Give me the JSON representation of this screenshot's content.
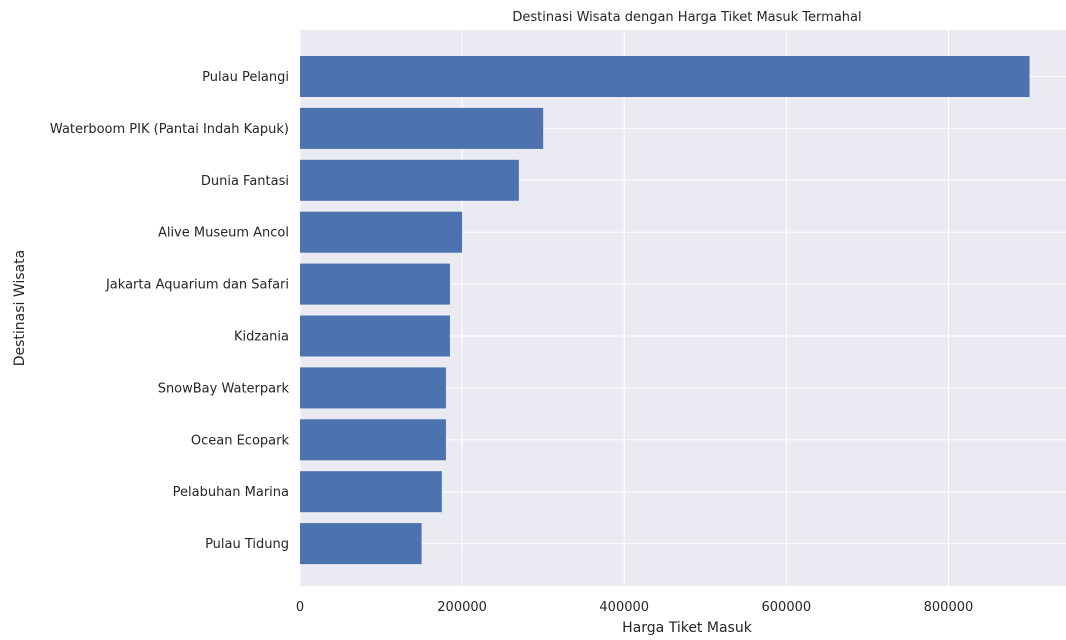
{
  "chart_data": {
    "type": "bar",
    "orientation": "horizontal",
    "title": "Destinasi Wisata dengan Harga Tiket Masuk Termahal",
    "xlabel": "Harga Tiket Masuk",
    "ylabel": "Destinasi Wisata",
    "categories": [
      "Pulau Pelangi",
      "Waterboom PIK (Pantai Indah Kapuk)",
      "Dunia Fantasi",
      "Alive Museum Ancol",
      "Jakarta Aquarium dan Safari",
      "Kidzania",
      "SnowBay Waterpark",
      "Ocean Ecopark",
      "Pelabuhan Marina",
      "Pulau Tidung"
    ],
    "values": [
      900000,
      300000,
      270000,
      200000,
      185000,
      185000,
      180000,
      180000,
      175000,
      150000
    ],
    "xticks": [
      0,
      200000,
      400000,
      600000,
      800000
    ],
    "xtick_labels": [
      "0",
      "200000",
      "400000",
      "600000",
      "800000"
    ],
    "xlim": [
      0,
      945000
    ],
    "grid": true,
    "colors": {
      "bar": "#4c72b0",
      "plot_background": "#eaeaf2",
      "grid": "#ffffff",
      "text": "#262626"
    }
  }
}
